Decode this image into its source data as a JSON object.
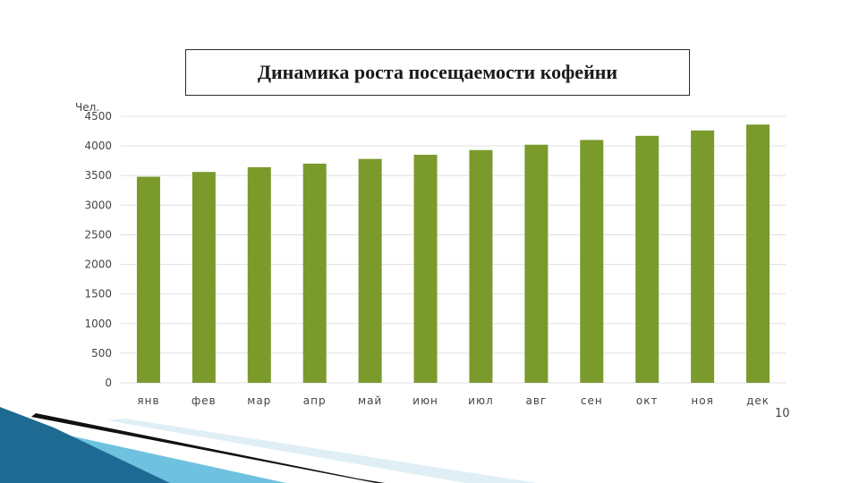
{
  "slide": {
    "page_number": "10"
  },
  "chart_data": {
    "type": "bar",
    "title": "Динамика роста посещаемости кофейни",
    "ylabel": "Чел.",
    "xlabel": "",
    "categories": [
      "янв",
      "фев",
      "мар",
      "апр",
      "май",
      "июн",
      "июл",
      "авг",
      "сен",
      "окт",
      "ноя",
      "дек"
    ],
    "values": [
      3480,
      3560,
      3640,
      3700,
      3780,
      3850,
      3930,
      4020,
      4100,
      4170,
      4260,
      4360
    ],
    "ylim": [
      0,
      4500
    ],
    "yticks": [
      0,
      500,
      1000,
      1500,
      2000,
      2500,
      3000,
      3500,
      4000,
      4500
    ],
    "grid": true,
    "legend": "none",
    "bar_color": "#7a9a2c",
    "grid_color": "#e0e0e0"
  },
  "decor": {
    "stripe_dark": "#1a5f86",
    "stripe_light": "#5fb8d8",
    "stripe_black": "#111111"
  }
}
